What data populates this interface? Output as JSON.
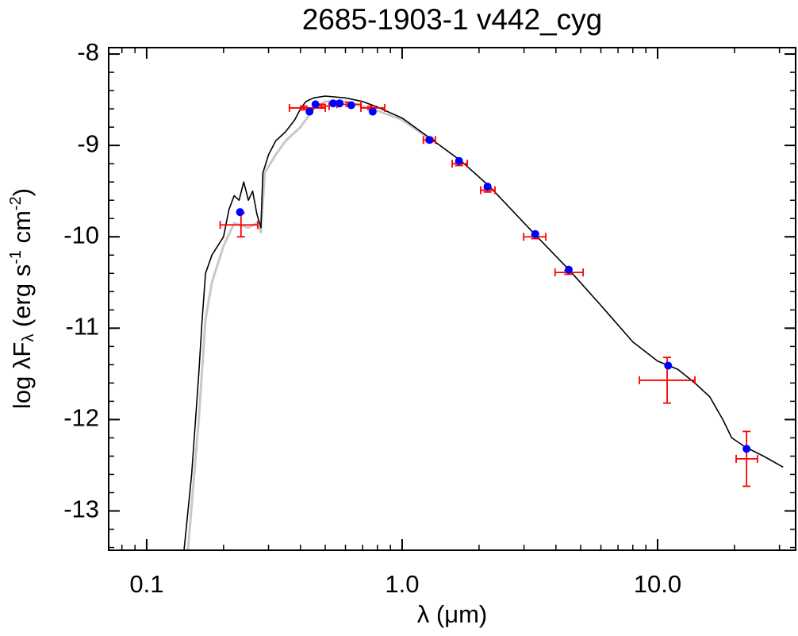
{
  "chart_data": {
    "type": "scatter",
    "title": "2685-1903-1   v442_cyg",
    "xlabel": "λ (μm)",
    "ylabel": [
      "log λF",
      "λ",
      " (erg s",
      "-1",
      " cm",
      "-2",
      ")"
    ],
    "xscale": "log",
    "xlim": [
      0.071,
      34.7
    ],
    "ylim": [
      -13.43,
      -7.93
    ],
    "xticks": [
      0.1,
      {
        "value": 1,
        "label": "1.0"
      },
      {
        "value": 10,
        "label": "10.0"
      }
    ],
    "xminorticks": [
      0.08,
      0.09,
      0.2,
      0.3,
      0.4,
      0.5,
      0.6,
      0.7,
      0.8,
      0.9,
      2,
      3,
      4,
      5,
      6,
      7,
      8,
      9,
      20,
      30
    ],
    "yticks": [
      -8,
      -9,
      -10,
      -11,
      -12,
      -13
    ],
    "yminorticks": [
      -8.2,
      -8.4,
      -8.6,
      -8.8,
      -9.2,
      -9.4,
      -9.6,
      -9.8,
      -10.2,
      -10.4,
      -10.6,
      -10.8,
      -11.2,
      -11.4,
      -11.6,
      -11.8,
      -12.2,
      -12.4,
      -12.6,
      -12.8,
      -13.2,
      -13.4
    ],
    "series": [
      {
        "type": "line",
        "color": "#c8c8c8",
        "x": [
          0.145,
          0.16,
          0.17,
          0.18,
          0.2,
          0.22,
          0.25,
          0.27,
          0.28,
          0.29,
          0.32,
          0.35,
          0.4,
          0.45,
          0.5,
          0.6,
          0.8,
          1.0,
          1.3
        ],
        "values": [
          -13.43,
          -12.0,
          -10.9,
          -10.5,
          -10.1,
          -9.85,
          -9.9,
          -9.85,
          -9.95,
          -9.3,
          -9.1,
          -8.95,
          -8.8,
          -8.6,
          -8.52,
          -8.52,
          -8.62,
          -8.72,
          -8.94
        ]
      },
      {
        "type": "line",
        "color": "#000000",
        "x": [
          0.14,
          0.15,
          0.16,
          0.165,
          0.17,
          0.18,
          0.2,
          0.21,
          0.22,
          0.23,
          0.24,
          0.25,
          0.26,
          0.27,
          0.28,
          0.285,
          0.3,
          0.32,
          0.35,
          0.38,
          0.4,
          0.42,
          0.45,
          0.5,
          0.6,
          0.7,
          0.8,
          1.0,
          1.3,
          1.7,
          2.2,
          3.3,
          4.5,
          6,
          8,
          10,
          12,
          14,
          16,
          18,
          19.5,
          22,
          26,
          31
        ],
        "values": [
          -13.43,
          -12.6,
          -11.5,
          -10.9,
          -10.4,
          -10.2,
          -10.0,
          -9.7,
          -9.55,
          -9.6,
          -9.4,
          -9.6,
          -9.5,
          -9.75,
          -9.9,
          -9.3,
          -9.1,
          -8.95,
          -8.85,
          -8.72,
          -8.6,
          -8.52,
          -8.48,
          -8.46,
          -8.48,
          -8.52,
          -8.58,
          -8.7,
          -8.93,
          -9.17,
          -9.45,
          -9.97,
          -10.36,
          -10.75,
          -11.15,
          -11.36,
          -11.45,
          -11.6,
          -11.75,
          -12.0,
          -12.2,
          -12.3,
          -12.4,
          -12.52
        ]
      },
      {
        "type": "errorbar",
        "color": "#ff0000",
        "x": [
          0.234,
          0.412,
          0.483,
          0.62,
          0.757,
          1.28,
          1.67,
          2.16,
          3.31,
          4.47,
          10.9,
          22.3
        ],
        "values": [
          -9.87,
          -8.59,
          -8.57,
          -8.55,
          -8.59,
          -8.94,
          -9.2,
          -9.49,
          -10.0,
          -10.39,
          -11.57,
          -12.43
        ],
        "x_lo": [
          0.194,
          0.362,
          0.449,
          0.556,
          0.69,
          1.21,
          1.57,
          2.03,
          2.99,
          3.97,
          8.49,
          20.3
        ],
        "x_hi": [
          0.272,
          0.5,
          0.518,
          0.69,
          0.855,
          1.35,
          1.8,
          2.31,
          3.65,
          5.11,
          14.0,
          24.6
        ],
        "yerr": [
          0.13,
          0.02,
          0.02,
          0.02,
          0.02,
          0.02,
          0.02,
          0.02,
          0.02,
          0.02,
          0.25,
          0.3
        ]
      },
      {
        "type": "scatter",
        "color": "#0000ff",
        "x": [
          0.232,
          0.434,
          0.458,
          0.537,
          0.569,
          0.632,
          0.767,
          1.28,
          1.67,
          2.16,
          3.32,
          4.49,
          11.0,
          22.3
        ],
        "values": [
          -9.73,
          -8.63,
          -8.55,
          -8.54,
          -8.54,
          -8.56,
          -8.63,
          -8.94,
          -9.17,
          -9.45,
          -9.97,
          -10.36,
          -11.41,
          -12.32
        ]
      }
    ]
  }
}
